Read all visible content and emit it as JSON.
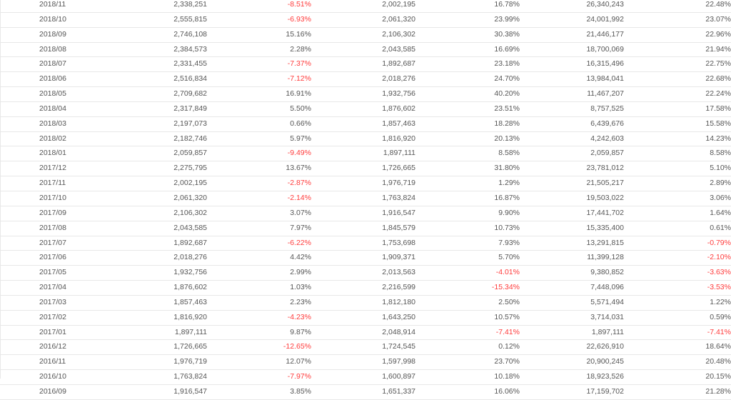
{
  "table": {
    "colors": {
      "negative": "#ff3b3b",
      "default": "#555555",
      "border": "#e8e8e8"
    },
    "rows": [
      [
        "2018/11",
        "2,338,251",
        "-8.51%",
        "2,002,195",
        "16.78%",
        "26,340,243",
        "22.48%"
      ],
      [
        "2018/10",
        "2,555,815",
        "-6.93%",
        "2,061,320",
        "23.99%",
        "24,001,992",
        "23.07%"
      ],
      [
        "2018/09",
        "2,746,108",
        "15.16%",
        "2,106,302",
        "30.38%",
        "21,446,177",
        "22.96%"
      ],
      [
        "2018/08",
        "2,384,573",
        "2.28%",
        "2,043,585",
        "16.69%",
        "18,700,069",
        "21.94%"
      ],
      [
        "2018/07",
        "2,331,455",
        "-7.37%",
        "1,892,687",
        "23.18%",
        "16,315,496",
        "22.75%"
      ],
      [
        "2018/06",
        "2,516,834",
        "-7.12%",
        "2,018,276",
        "24.70%",
        "13,984,041",
        "22.68%"
      ],
      [
        "2018/05",
        "2,709,682",
        "16.91%",
        "1,932,756",
        "40.20%",
        "11,467,207",
        "22.24%"
      ],
      [
        "2018/04",
        "2,317,849",
        "5.50%",
        "1,876,602",
        "23.51%",
        "8,757,525",
        "17.58%"
      ],
      [
        "2018/03",
        "2,197,073",
        "0.66%",
        "1,857,463",
        "18.28%",
        "6,439,676",
        "15.58%"
      ],
      [
        "2018/02",
        "2,182,746",
        "5.97%",
        "1,816,920",
        "20.13%",
        "4,242,603",
        "14.23%"
      ],
      [
        "2018/01",
        "2,059,857",
        "-9.49%",
        "1,897,111",
        "8.58%",
        "2,059,857",
        "8.58%"
      ],
      [
        "2017/12",
        "2,275,795",
        "13.67%",
        "1,726,665",
        "31.80%",
        "23,781,012",
        "5.10%"
      ],
      [
        "2017/11",
        "2,002,195",
        "-2.87%",
        "1,976,719",
        "1.29%",
        "21,505,217",
        "2.89%"
      ],
      [
        "2017/10",
        "2,061,320",
        "-2.14%",
        "1,763,824",
        "16.87%",
        "19,503,022",
        "3.06%"
      ],
      [
        "2017/09",
        "2,106,302",
        "3.07%",
        "1,916,547",
        "9.90%",
        "17,441,702",
        "1.64%"
      ],
      [
        "2017/08",
        "2,043,585",
        "7.97%",
        "1,845,579",
        "10.73%",
        "15,335,400",
        "0.61%"
      ],
      [
        "2017/07",
        "1,892,687",
        "-6.22%",
        "1,753,698",
        "7.93%",
        "13,291,815",
        "-0.79%"
      ],
      [
        "2017/06",
        "2,018,276",
        "4.42%",
        "1,909,371",
        "5.70%",
        "11,399,128",
        "-2.10%"
      ],
      [
        "2017/05",
        "1,932,756",
        "2.99%",
        "2,013,563",
        "-4.01%",
        "9,380,852",
        "-3.63%"
      ],
      [
        "2017/04",
        "1,876,602",
        "1.03%",
        "2,216,599",
        "-15.34%",
        "7,448,096",
        "-3.53%"
      ],
      [
        "2017/03",
        "1,857,463",
        "2.23%",
        "1,812,180",
        "2.50%",
        "5,571,494",
        "1.22%"
      ],
      [
        "2017/02",
        "1,816,920",
        "-4.23%",
        "1,643,250",
        "10.57%",
        "3,714,031",
        "0.59%"
      ],
      [
        "2017/01",
        "1,897,111",
        "9.87%",
        "2,048,914",
        "-7.41%",
        "1,897,111",
        "-7.41%"
      ],
      [
        "2016/12",
        "1,726,665",
        "-12.65%",
        "1,724,545",
        "0.12%",
        "22,626,910",
        "18.64%"
      ],
      [
        "2016/11",
        "1,976,719",
        "12.07%",
        "1,597,998",
        "23.70%",
        "20,900,245",
        "20.48%"
      ],
      [
        "2016/10",
        "1,763,824",
        "-7.97%",
        "1,600,897",
        "10.18%",
        "18,923,526",
        "20.15%"
      ],
      [
        "2016/09",
        "1,916,547",
        "3.85%",
        "1,651,337",
        "16.06%",
        "17,159,702",
        "21.28%"
      ]
    ]
  }
}
